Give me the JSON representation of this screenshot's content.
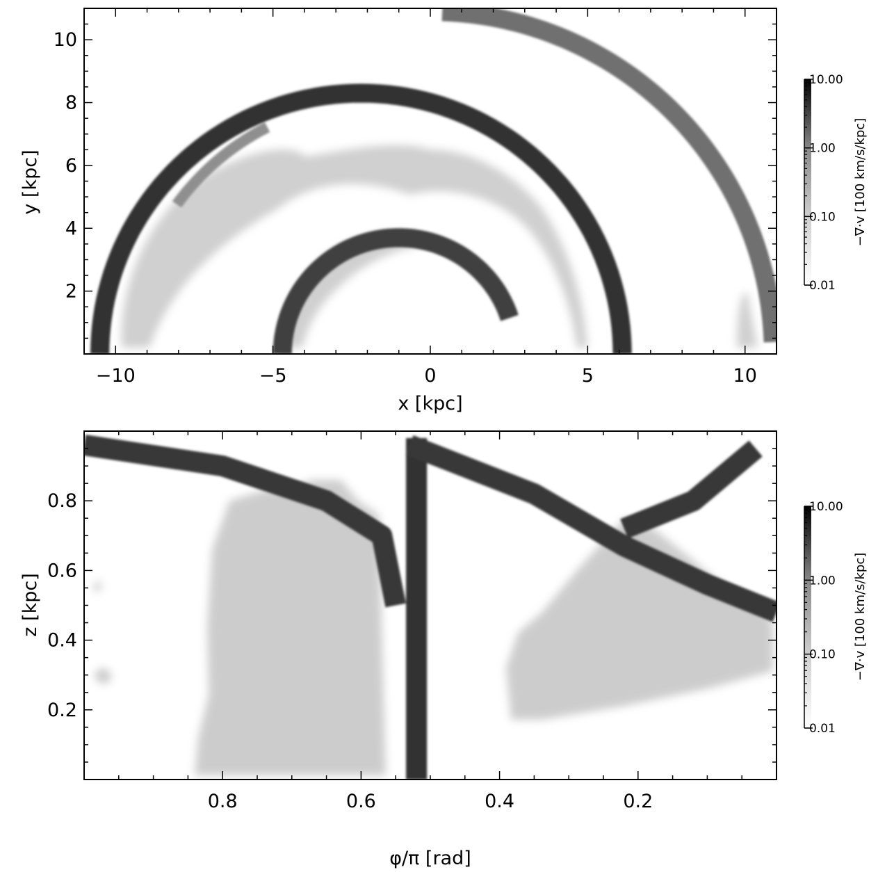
{
  "chart_data": [
    {
      "type": "heatmap",
      "panel": "top",
      "xlabel": "x [kpc]",
      "ylabel": "y [kpc]",
      "xlim": [
        -11,
        11
      ],
      "ylim": [
        0,
        11
      ],
      "xticks": [
        -10,
        -5,
        0,
        5,
        10
      ],
      "xtick_labels": [
        "−10",
        "−5",
        "0",
        "5",
        "10"
      ],
      "yticks": [
        2,
        4,
        6,
        8,
        10
      ],
      "ytick_labels": [
        "2",
        "4",
        "6",
        "8",
        "10"
      ],
      "colorbar": {
        "label": "−∇·v [100 km/s/kpc]",
        "scale": "log",
        "range": [
          0.01,
          10
        ],
        "ticks": [
          0.01,
          0.1,
          1,
          10
        ],
        "tick_labels": [
          "0.01",
          "0.10",
          "1.00",
          "10.00"
        ],
        "colors": [
          "#ffffff",
          "#000000"
        ]
      },
      "features": [
        {
          "name": "inner arc",
          "center": [
            -1.0,
            0
          ],
          "radius": 3.7,
          "width": 0.6,
          "from_deg": 18,
          "to_deg": 180,
          "level": 2.0
        },
        {
          "name": "middle arc",
          "center": [
            -2.2,
            0
          ],
          "radius": 8.3,
          "width": 0.6,
          "from_deg": 0,
          "to_deg": 180,
          "level": 3.0
        },
        {
          "name": "outer arc",
          "center": [
            0,
            0
          ],
          "radius": 10.9,
          "width": 0.6,
          "from_deg": 2,
          "to_deg": 88,
          "level": 0.5
        },
        {
          "name": "upper-left fragment",
          "center": [
            -1.5,
            0
          ],
          "radius": 8.1,
          "width": 0.35,
          "from_deg": 117,
          "to_deg": 144,
          "level": 0.2
        }
      ]
    },
    {
      "type": "heatmap",
      "panel": "bottom",
      "xlabel": "φ/π [rad]",
      "ylabel": "z [kpc]",
      "xlim": [
        1.0,
        0.0
      ],
      "ylim": [
        0.0,
        1.0
      ],
      "xticks": [
        0.8,
        0.6,
        0.4,
        0.2
      ],
      "xtick_labels": [
        "0.8",
        "0.6",
        "0.4",
        "0.2"
      ],
      "yticks": [
        0.2,
        0.4,
        0.6,
        0.8
      ],
      "ytick_labels": [
        "0.2",
        "0.4",
        "0.6",
        "0.8"
      ],
      "colorbar": {
        "label": "−∇·v [100 km/s/kpc]",
        "scale": "log",
        "range": [
          0.01,
          10
        ],
        "ticks": [
          0.01,
          0.1,
          1,
          10
        ],
        "tick_labels": [
          "0.01",
          "0.10",
          "1.00",
          "10.00"
        ],
        "colors": [
          "#ffffff",
          "#000000"
        ]
      },
      "features": [
        {
          "name": "vertical band",
          "points": [
            [
              0.52,
              0.0
            ],
            [
              0.52,
              0.98
            ]
          ],
          "level": 3.0
        },
        {
          "name": "diagonal band left",
          "points": [
            [
              1.0,
              0.96
            ],
            [
              0.8,
              0.9
            ],
            [
              0.65,
              0.8
            ],
            [
              0.57,
              0.7
            ],
            [
              0.55,
              0.5
            ]
          ],
          "level": 2.5
        },
        {
          "name": "diagonal band right",
          "points": [
            [
              0.53,
              0.96
            ],
            [
              0.35,
              0.82
            ],
            [
              0.22,
              0.67
            ],
            [
              0.1,
              0.56
            ],
            [
              0.0,
              0.48
            ]
          ],
          "level": 2.5
        },
        {
          "name": "rising band",
          "points": [
            [
              0.22,
              0.72
            ],
            [
              0.12,
              0.8
            ],
            [
              0.03,
              0.95
            ]
          ],
          "level": 2.5
        }
      ]
    }
  ]
}
